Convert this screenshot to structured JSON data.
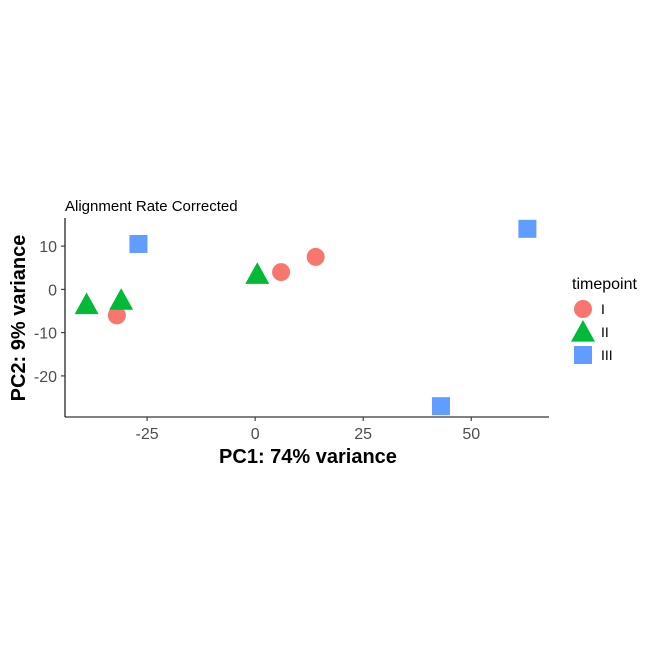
{
  "chart_data": {
    "type": "scatter",
    "title": "Alignment Rate Corrected",
    "xlabel": "PC1: 74% variance",
    "ylabel": "PC2: 9% variance",
    "xlim": [
      -44,
      68
    ],
    "ylim": [
      -29.5,
      16.5
    ],
    "xticks": [
      -25,
      0,
      25,
      50
    ],
    "yticks": [
      -20,
      -10,
      0,
      10
    ],
    "xtick_labels": [
      "-25",
      "0",
      "25",
      "50"
    ],
    "ytick_labels": [
      "-20",
      "-10",
      "0",
      "10"
    ],
    "grid": false,
    "legend": {
      "title": "timepoint",
      "placement": "right"
    },
    "series": [
      {
        "name": "I",
        "shape": "circle",
        "color": "#F8766D",
        "x": [
          -32,
          6,
          14
        ],
        "y": [
          -6,
          4,
          7.5
        ]
      },
      {
        "name": "II",
        "shape": "triangle",
        "color": "#00BA38",
        "x": [
          -39,
          -31,
          0.5
        ],
        "y": [
          -3.5,
          -2.5,
          3.5
        ]
      },
      {
        "name": "III",
        "shape": "square",
        "color": "#619CFF",
        "x": [
          -27,
          63,
          43
        ],
        "y": [
          10.5,
          14,
          -27
        ]
      }
    ]
  }
}
